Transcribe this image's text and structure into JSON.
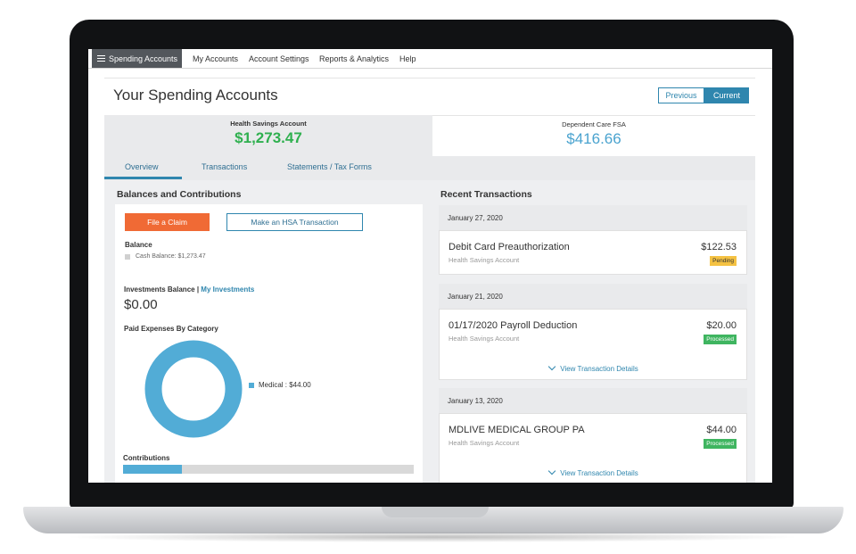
{
  "nav": {
    "active": "Spending Accounts",
    "items": [
      "My Accounts",
      "Account Settings",
      "Reports & Analytics",
      "Help"
    ]
  },
  "header": {
    "title": "Your Spending Accounts",
    "previous": "Previous",
    "current": "Current"
  },
  "summary": {
    "hsa_label": "Health Savings Account",
    "hsa_value": "$1,273.47",
    "dep_label": "Dependent Care FSA",
    "dep_value": "$416.66"
  },
  "tabs": [
    "Overview",
    "Transactions",
    "Statements / Tax Forms"
  ],
  "left": {
    "section_title": "Balances and Contributions",
    "file_claim": "File a Claim",
    "make_hsa": "Make an HSA Transaction",
    "balance_label": "Balance",
    "cash_balance": "Cash Balance: $1,273.47",
    "investments_label": "Investments Balance |",
    "my_investments": "My Investments",
    "investments_value": "$0.00",
    "paid_expenses_label": "Paid Expenses By Category",
    "legend_medical": "Medical : $44.00",
    "contributions_label": "Contributions"
  },
  "chart_data": {
    "type": "pie",
    "categories": [
      "Medical"
    ],
    "values": [
      44.0
    ]
  },
  "right": {
    "section_title": "Recent Transactions",
    "groups": [
      {
        "date": "January 27, 2020",
        "name": "Debit Card Preauthorization",
        "account": "Health Savings Account",
        "amount": "$122.53",
        "status": "Pending"
      },
      {
        "date": "January 21, 2020",
        "name": "01/17/2020 Payroll Deduction",
        "account": "Health Savings Account",
        "amount": "$20.00",
        "status": "Processed",
        "details": "View Transaction Details"
      },
      {
        "date": "January 13, 2020",
        "name": "MDLIVE MEDICAL GROUP PA",
        "account": "Health Savings Account",
        "amount": "$44.00",
        "status": "Processed",
        "details": "View Transaction Details"
      }
    ]
  },
  "colors": {
    "accent": "#2f86ae",
    "claim_button": "#f06a35",
    "hsa_green": "#2fb04f",
    "dep_blue": "#4aa3cf",
    "pending": "#f5c242",
    "processed": "#3fb560",
    "donut": "#52acd6"
  }
}
